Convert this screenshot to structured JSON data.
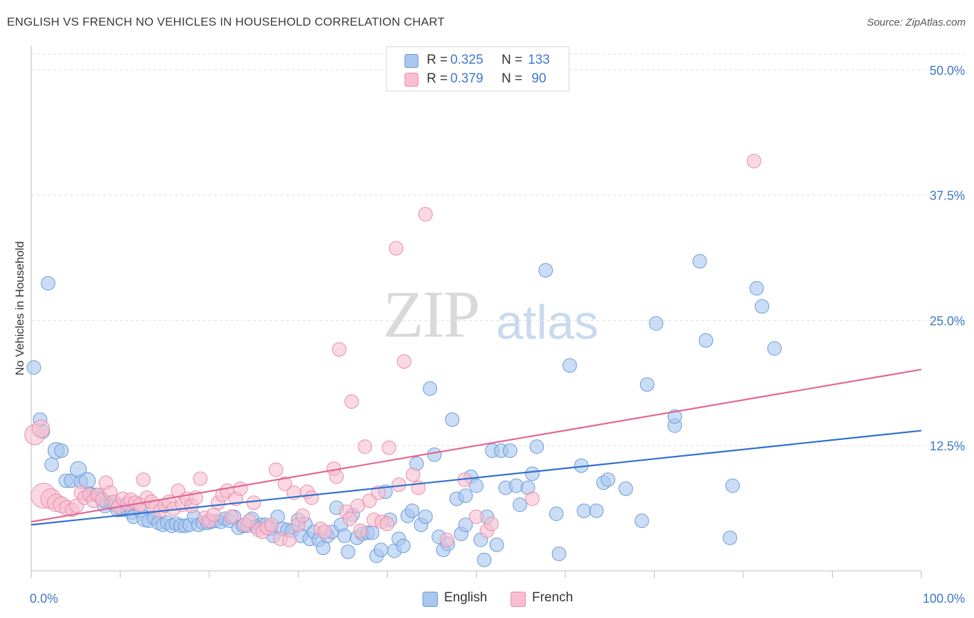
{
  "title": "ENGLISH VS FRENCH NO VEHICLES IN HOUSEHOLD CORRELATION CHART",
  "source": "Source: ZipAtlas.com",
  "watermark": {
    "zip": "ZIP",
    "atlas": "atlas"
  },
  "legend": {
    "english": {
      "r_label": "R = ",
      "r_value": "0.325",
      "n_label": "N = ",
      "n_value": "133"
    },
    "french": {
      "r_label": "R = ",
      "r_value": "0.379",
      "n_label": "N = ",
      "n_value": " 90"
    }
  },
  "bottom_legend": {
    "english": "English",
    "french": "French"
  },
  "colors": {
    "english_fill": "#a9c6ef",
    "english_stroke": "#6a9ad8",
    "english_line": "#2f6fcf",
    "french_fill": "#f7bfd0",
    "french_stroke": "#e98aa8",
    "french_line": "#e2668f",
    "tick_label": "#3e78c7",
    "grid": "#dddddd"
  },
  "chart_data": {
    "type": "scatter",
    "title": "ENGLISH VS FRENCH NO VEHICLES IN HOUSEHOLD CORRELATION CHART",
    "xlabel": "",
    "ylabel": "No Vehicles in Household",
    "xlim": [
      0,
      100
    ],
    "ylim": [
      0,
      52
    ],
    "x_tick_labels": [
      "0.0%",
      "100.0%"
    ],
    "y_ticks": [
      12.5,
      25.0,
      37.5,
      50.0
    ],
    "y_tick_labels": [
      "12.5%",
      "25.0%",
      "37.5%",
      "50.0%"
    ],
    "grid": true,
    "legend_position": "top-center",
    "series": [
      {
        "name": "English",
        "trend": {
          "x": [
            0,
            100
          ],
          "y": [
            4.6,
            14.0
          ]
        },
        "points": [
          [
            0.3,
            20.3,
            1.1
          ],
          [
            1.0,
            15.1,
            1.1
          ],
          [
            1.3,
            13.9,
            1.1
          ],
          [
            1.9,
            28.7,
            1.1
          ],
          [
            2.3,
            10.6,
            1.1
          ],
          [
            2.8,
            12.0,
            1.3
          ],
          [
            3.4,
            12.0,
            1.1
          ],
          [
            3.9,
            9.0,
            1.1
          ],
          [
            4.5,
            9.0,
            1.1
          ],
          [
            5.3,
            10.1,
            1.3
          ],
          [
            5.6,
            8.9,
            1.1
          ],
          [
            6.3,
            9.0,
            1.3
          ],
          [
            6.6,
            7.7,
            1.1
          ],
          [
            7.3,
            7.6,
            1.1
          ],
          [
            7.8,
            7.3,
            1.1
          ],
          [
            8.4,
            6.9,
            1.1
          ],
          [
            8.3,
            6.6,
            1.3
          ],
          [
            9.0,
            6.8,
            1.1
          ],
          [
            9.5,
            6.6,
            1.1
          ],
          [
            9.8,
            6.2,
            1.3
          ],
          [
            10.2,
            6.1,
            1.1
          ],
          [
            10.8,
            6.1,
            1.1
          ],
          [
            11.3,
            5.8,
            1.1
          ],
          [
            11.5,
            5.4,
            1.1
          ],
          [
            12.3,
            6.0,
            1.1
          ],
          [
            12.8,
            5.2,
            1.3
          ],
          [
            13.2,
            5.0,
            1.1
          ],
          [
            13.8,
            5.3,
            1.1
          ],
          [
            14.3,
            4.8,
            1.1
          ],
          [
            14.8,
            4.6,
            1.1
          ],
          [
            15.3,
            4.8,
            1.1
          ],
          [
            15.8,
            4.5,
            1.1
          ],
          [
            16.3,
            4.7,
            1.1
          ],
          [
            16.8,
            4.5,
            1.1
          ],
          [
            17.3,
            4.5,
            1.1
          ],
          [
            17.8,
            4.6,
            1.1
          ],
          [
            18.3,
            5.4,
            1.1
          ],
          [
            18.8,
            4.6,
            1.1
          ],
          [
            19.3,
            4.8,
            1.1
          ],
          [
            19.8,
            4.8,
            1.1
          ],
          [
            20.2,
            4.9,
            1.1
          ],
          [
            20.7,
            5.0,
            1.1
          ],
          [
            21.3,
            4.9,
            1.1
          ],
          [
            21.8,
            5.2,
            1.1
          ],
          [
            22.3,
            5.0,
            1.1
          ],
          [
            22.8,
            5.4,
            1.1
          ],
          [
            23.3,
            4.3,
            1.1
          ],
          [
            23.8,
            4.5,
            1.1
          ],
          [
            24.3,
            4.5,
            1.1
          ],
          [
            24.8,
            5.2,
            1.1
          ],
          [
            25.3,
            4.4,
            1.1
          ],
          [
            25.8,
            4.6,
            1.1
          ],
          [
            26.3,
            4.6,
            1.1
          ],
          [
            26.8,
            4.2,
            1.1
          ],
          [
            27.2,
            3.5,
            1.1
          ],
          [
            27.7,
            5.4,
            1.1
          ],
          [
            28.2,
            4.2,
            1.1
          ],
          [
            28.8,
            4.1,
            1.1
          ],
          [
            29.3,
            4.0,
            1.1
          ],
          [
            30.0,
            5.1,
            1.1
          ],
          [
            30.3,
            3.5,
            1.1
          ],
          [
            30.8,
            4.7,
            1.1
          ],
          [
            31.3,
            3.2,
            1.1
          ],
          [
            31.8,
            3.9,
            1.1
          ],
          [
            32.3,
            3.1,
            1.1
          ],
          [
            32.8,
            2.3,
            1.1
          ],
          [
            33.3,
            3.5,
            1.1
          ],
          [
            33.8,
            3.9,
            1.1
          ],
          [
            34.3,
            6.3,
            1.1
          ],
          [
            34.8,
            4.6,
            1.1
          ],
          [
            35.2,
            3.5,
            1.1
          ],
          [
            35.6,
            1.9,
            1.1
          ],
          [
            36.1,
            5.6,
            1.1
          ],
          [
            36.6,
            3.3,
            1.1
          ],
          [
            37.2,
            3.7,
            1.1
          ],
          [
            37.8,
            3.8,
            1.1
          ],
          [
            38.3,
            3.8,
            1.1
          ],
          [
            38.8,
            1.5,
            1.1
          ],
          [
            39.3,
            2.1,
            1.1
          ],
          [
            39.8,
            7.9,
            1.1
          ],
          [
            40.3,
            5.1,
            1.1
          ],
          [
            40.8,
            2.0,
            1.1
          ],
          [
            41.3,
            3.2,
            1.1
          ],
          [
            41.8,
            2.5,
            1.1
          ],
          [
            42.3,
            5.5,
            1.1
          ],
          [
            42.8,
            6.0,
            1.1
          ],
          [
            43.3,
            10.7,
            1.1
          ],
          [
            43.8,
            4.6,
            1.1
          ],
          [
            44.3,
            5.4,
            1.1
          ],
          [
            44.8,
            18.2,
            1.1
          ],
          [
            45.3,
            11.6,
            1.1
          ],
          [
            45.8,
            3.4,
            1.1
          ],
          [
            46.3,
            2.1,
            1.1
          ],
          [
            46.8,
            2.7,
            1.1
          ],
          [
            47.3,
            15.1,
            1.1
          ],
          [
            47.8,
            7.2,
            1.1
          ],
          [
            48.3,
            3.7,
            1.1
          ],
          [
            48.8,
            7.5,
            1.1
          ],
          [
            48.8,
            4.6,
            1.1
          ],
          [
            49.4,
            9.4,
            1.1
          ],
          [
            50.0,
            8.5,
            1.1
          ],
          [
            50.5,
            3.1,
            1.1
          ],
          [
            50.9,
            1.1,
            1.1
          ],
          [
            51.2,
            5.4,
            1.1
          ],
          [
            51.8,
            12.0,
            1.1
          ],
          [
            52.3,
            2.6,
            1.1
          ],
          [
            52.8,
            12.0,
            1.1
          ],
          [
            53.3,
            8.3,
            1.1
          ],
          [
            53.8,
            12.0,
            1.1
          ],
          [
            54.5,
            8.5,
            1.1
          ],
          [
            54.9,
            6.6,
            1.1
          ],
          [
            55.8,
            8.3,
            1.1
          ],
          [
            56.3,
            9.7,
            1.1
          ],
          [
            56.8,
            12.4,
            1.1
          ],
          [
            57.8,
            30.0,
            1.1
          ],
          [
            59.0,
            5.7,
            1.1
          ],
          [
            59.3,
            1.7,
            1.1
          ],
          [
            60.5,
            20.5,
            1.1
          ],
          [
            61.8,
            10.5,
            1.1
          ],
          [
            62.1,
            6.0,
            1.1
          ],
          [
            63.5,
            6.0,
            1.1
          ],
          [
            64.3,
            8.8,
            1.1
          ],
          [
            64.8,
            9.1,
            1.1
          ],
          [
            66.8,
            8.2,
            1.1
          ],
          [
            69.2,
            18.6,
            1.1
          ],
          [
            68.6,
            5.0,
            1.1
          ],
          [
            70.2,
            24.7,
            1.1
          ],
          [
            72.3,
            14.5,
            1.1
          ],
          [
            72.3,
            15.4,
            1.1
          ],
          [
            75.1,
            30.9,
            1.1
          ],
          [
            75.8,
            23.0,
            1.1
          ],
          [
            78.5,
            3.3,
            1.1
          ],
          [
            78.8,
            8.5,
            1.1
          ],
          [
            81.5,
            28.2,
            1.1
          ],
          [
            82.1,
            26.4,
            1.1
          ],
          [
            83.5,
            22.2,
            1.1
          ]
        ]
      },
      {
        "name": "French",
        "trend": {
          "x": [
            0,
            100
          ],
          "y": [
            4.9,
            20.1
          ]
        },
        "points": [
          [
            0.4,
            13.6,
            1.6
          ],
          [
            1.1,
            14.2,
            1.4
          ],
          [
            1.4,
            7.5,
            2.0
          ],
          [
            2.2,
            7.2,
            1.6
          ],
          [
            2.8,
            6.8,
            1.4
          ],
          [
            3.4,
            6.6,
            1.3
          ],
          [
            4.0,
            6.3,
            1.2
          ],
          [
            4.6,
            6.1,
            1.1
          ],
          [
            5.1,
            6.5,
            1.1
          ],
          [
            5.6,
            7.8,
            1.1
          ],
          [
            6.0,
            7.3,
            1.1
          ],
          [
            6.5,
            7.6,
            1.1
          ],
          [
            7.0,
            7.0,
            1.1
          ],
          [
            7.5,
            7.6,
            1.1
          ],
          [
            8.0,
            7.1,
            1.1
          ],
          [
            8.4,
            8.8,
            1.1
          ],
          [
            8.9,
            7.8,
            1.1
          ],
          [
            9.3,
            6.9,
            1.1
          ],
          [
            9.8,
            6.4,
            1.1
          ],
          [
            10.3,
            7.2,
            1.1
          ],
          [
            10.8,
            6.7,
            1.1
          ],
          [
            11.2,
            7.1,
            1.1
          ],
          [
            11.7,
            6.8,
            1.1
          ],
          [
            12.2,
            6.6,
            1.1
          ],
          [
            12.6,
            9.1,
            1.1
          ],
          [
            13.0,
            7.3,
            1.1
          ],
          [
            13.5,
            6.9,
            1.1
          ],
          [
            14.0,
            6.4,
            1.1
          ],
          [
            14.5,
            6.0,
            1.1
          ],
          [
            15.0,
            6.5,
            1.1
          ],
          [
            15.5,
            6.9,
            1.1
          ],
          [
            16.0,
            6.2,
            1.1
          ],
          [
            16.5,
            8.0,
            1.1
          ],
          [
            17.0,
            6.6,
            1.1
          ],
          [
            17.5,
            7.2,
            1.1
          ],
          [
            18.0,
            6.5,
            1.1
          ],
          [
            18.5,
            7.3,
            1.1
          ],
          [
            19.0,
            9.2,
            1.1
          ],
          [
            19.5,
            5.3,
            1.1
          ],
          [
            20.0,
            5.0,
            1.1
          ],
          [
            20.5,
            5.6,
            1.1
          ],
          [
            21.0,
            6.8,
            1.1
          ],
          [
            21.5,
            7.6,
            1.1
          ],
          [
            22.0,
            8.0,
            1.1
          ],
          [
            22.5,
            5.4,
            1.1
          ],
          [
            23.0,
            7.2,
            1.1
          ],
          [
            23.5,
            8.2,
            1.1
          ],
          [
            24.0,
            4.6,
            1.1
          ],
          [
            24.5,
            5.0,
            1.1
          ],
          [
            25.0,
            6.8,
            1.1
          ],
          [
            25.5,
            4.1,
            1.1
          ],
          [
            26.0,
            3.9,
            1.1
          ],
          [
            26.5,
            4.3,
            1.1
          ],
          [
            27.0,
            4.6,
            1.1
          ],
          [
            27.5,
            10.1,
            1.1
          ],
          [
            28.0,
            3.2,
            1.1
          ],
          [
            28.5,
            8.7,
            1.1
          ],
          [
            29.0,
            3.1,
            1.1
          ],
          [
            29.5,
            7.8,
            1.1
          ],
          [
            30.0,
            4.6,
            1.1
          ],
          [
            30.5,
            5.5,
            1.1
          ],
          [
            31.0,
            7.9,
            1.1
          ],
          [
            31.5,
            7.3,
            1.1
          ],
          [
            32.5,
            4.2,
            1.1
          ],
          [
            33.0,
            3.9,
            1.1
          ],
          [
            34.0,
            10.2,
            1.1
          ],
          [
            34.3,
            9.4,
            1.1
          ],
          [
            34.6,
            22.1,
            1.1
          ],
          [
            35.4,
            5.9,
            1.1
          ],
          [
            35.8,
            5.2,
            1.1
          ],
          [
            36.0,
            16.9,
            1.1
          ],
          [
            36.7,
            6.5,
            1.1
          ],
          [
            37.0,
            4.0,
            1.1
          ],
          [
            37.5,
            12.4,
            1.1
          ],
          [
            38.0,
            7.0,
            1.1
          ],
          [
            38.5,
            5.1,
            1.1
          ],
          [
            39.0,
            7.8,
            1.1
          ],
          [
            39.4,
            4.9,
            1.1
          ],
          [
            40.0,
            4.7,
            1.1
          ],
          [
            40.2,
            12.3,
            1.1
          ],
          [
            41.0,
            32.2,
            1.1
          ],
          [
            41.3,
            8.6,
            1.1
          ],
          [
            41.9,
            20.9,
            1.1
          ],
          [
            42.9,
            9.6,
            1.1
          ],
          [
            43.5,
            8.3,
            1.1
          ],
          [
            44.3,
            35.6,
            1.1
          ],
          [
            46.7,
            3.1,
            1.1
          ],
          [
            48.7,
            9.1,
            1.1
          ],
          [
            50.0,
            5.4,
            1.1
          ],
          [
            51.2,
            4.0,
            1.1
          ],
          [
            51.7,
            4.7,
            1.1
          ],
          [
            56.3,
            7.2,
            1.1
          ],
          [
            81.2,
            40.9,
            1.1
          ]
        ]
      }
    ]
  }
}
